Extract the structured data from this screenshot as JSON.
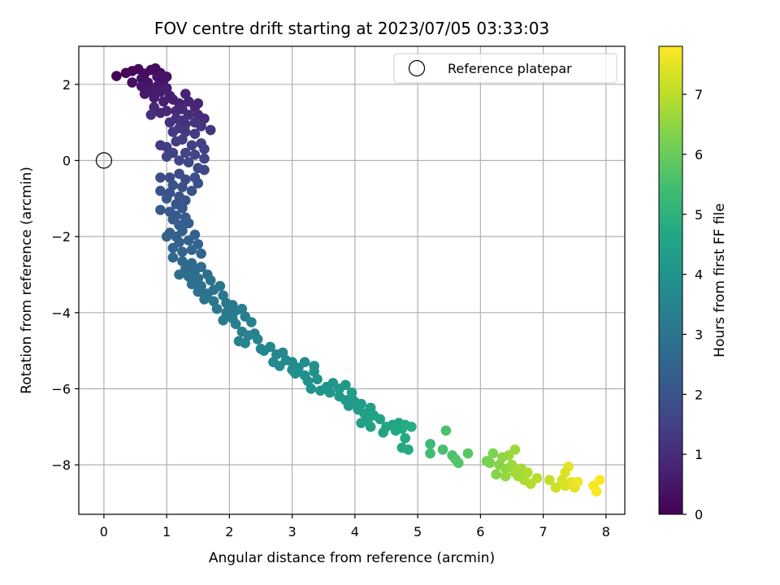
{
  "chart_data": {
    "type": "scatter",
    "title": "FOV centre drift starting at 2023/07/05 03:33:03",
    "xlabel": "Angular distance from reference (arcmin)",
    "ylabel": "Rotation from reference (arcmin)",
    "xlim": [
      -0.4,
      8.3
    ],
    "ylim": [
      -9.3,
      3.0
    ],
    "xticks": [
      0,
      1,
      2,
      3,
      4,
      5,
      6,
      7,
      8
    ],
    "yticks": [
      2,
      0,
      -2,
      -4,
      -6,
      -8
    ],
    "grid": true,
    "legend": {
      "placement": "top-right",
      "entries": [
        "Reference platepar"
      ]
    },
    "reference_point": {
      "x": 0,
      "y": 0,
      "label": "Reference platepar"
    },
    "colorbar": {
      "label": "Hours from first FF file",
      "min": 0,
      "max": 7.8,
      "ticks": [
        0,
        1,
        2,
        3,
        4,
        5,
        6,
        7
      ],
      "colormap": "viridis"
    },
    "points": [
      [
        0.2,
        2.22,
        0.05
      ],
      [
        0.35,
        2.3,
        0.1
      ],
      [
        0.45,
        2.35,
        0.15
      ],
      [
        0.55,
        2.4,
        0.2
      ],
      [
        0.65,
        2.28,
        0.22
      ],
      [
        0.75,
        2.38,
        0.25
      ],
      [
        0.82,
        2.42,
        0.28
      ],
      [
        0.9,
        2.3,
        0.3
      ],
      [
        0.45,
        2.05,
        0.32
      ],
      [
        0.6,
        2.15,
        0.35
      ],
      [
        0.7,
        2.05,
        0.38
      ],
      [
        0.85,
        2.2,
        0.4
      ],
      [
        0.95,
        2.1,
        0.42
      ],
      [
        1.0,
        2.2,
        0.45
      ],
      [
        0.6,
        1.95,
        0.48
      ],
      [
        0.75,
        1.85,
        0.5
      ],
      [
        0.85,
        1.95,
        0.52
      ],
      [
        0.65,
        1.75,
        0.55
      ],
      [
        0.8,
        1.65,
        0.58
      ],
      [
        0.9,
        1.8,
        0.6
      ],
      [
        1.0,
        1.9,
        0.62
      ],
      [
        1.05,
        1.7,
        0.65
      ],
      [
        0.95,
        1.55,
        0.68
      ],
      [
        1.1,
        1.6,
        0.7
      ],
      [
        1.2,
        1.5,
        0.72
      ],
      [
        1.3,
        1.75,
        0.75
      ],
      [
        1.35,
        1.55,
        0.78
      ],
      [
        1.45,
        1.4,
        0.8
      ],
      [
        1.5,
        1.5,
        0.82
      ],
      [
        0.8,
        1.4,
        0.85
      ],
      [
        0.9,
        1.25,
        0.88
      ],
      [
        1.0,
        1.3,
        0.9
      ],
      [
        1.15,
        1.3,
        0.92
      ],
      [
        1.25,
        1.35,
        0.95
      ],
      [
        1.35,
        1.2,
        0.98
      ],
      [
        1.5,
        1.2,
        1.0
      ],
      [
        1.6,
        1.1,
        1.02
      ],
      [
        0.75,
        1.2,
        1.05
      ],
      [
        1.05,
        1.0,
        1.08
      ],
      [
        1.15,
        1.1,
        1.1
      ],
      [
        1.25,
        1.05,
        1.12
      ],
      [
        1.3,
        0.95,
        1.15
      ],
      [
        1.45,
        1.0,
        1.18
      ],
      [
        1.55,
        0.9,
        1.2
      ],
      [
        1.7,
        0.8,
        1.22
      ],
      [
        1.2,
        0.85,
        1.25
      ],
      [
        1.1,
        0.75,
        1.28
      ],
      [
        1.3,
        0.75,
        1.3
      ],
      [
        1.45,
        0.7,
        1.32
      ],
      [
        0.9,
        0.4,
        1.35
      ],
      [
        1.0,
        0.35,
        1.38
      ],
      [
        1.15,
        0.5,
        1.4
      ],
      [
        1.25,
        0.55,
        1.42
      ],
      [
        1.4,
        0.4,
        1.45
      ],
      [
        1.55,
        0.45,
        1.48
      ],
      [
        1.6,
        0.3,
        1.5
      ],
      [
        1.1,
        0.2,
        1.52
      ],
      [
        1.3,
        0.2,
        1.55
      ],
      [
        1.45,
        0.15,
        1.58
      ],
      [
        1.6,
        0.05,
        1.6
      ],
      [
        1.0,
        0.1,
        1.62
      ],
      [
        1.2,
        0.0,
        1.65
      ],
      [
        1.35,
        -0.05,
        1.68
      ],
      [
        1.5,
        -0.2,
        1.7
      ],
      [
        1.6,
        -0.25,
        1.72
      ],
      [
        0.9,
        -0.45,
        1.75
      ],
      [
        1.05,
        -0.45,
        1.78
      ],
      [
        1.2,
        -0.35,
        1.8
      ],
      [
        1.3,
        -0.5,
        1.82
      ],
      [
        1.45,
        -0.45,
        1.85
      ],
      [
        1.5,
        -0.6,
        1.88
      ],
      [
        1.1,
        -0.65,
        1.9
      ],
      [
        1.25,
        -0.7,
        1.92
      ],
      [
        1.4,
        -0.8,
        1.95
      ],
      [
        0.9,
        -0.8,
        1.98
      ],
      [
        1.05,
        -0.85,
        2.0
      ],
      [
        1.2,
        -0.95,
        2.02
      ],
      [
        1.3,
        -1.05,
        2.05
      ],
      [
        1.15,
        -1.15,
        2.08
      ],
      [
        1.0,
        -1.0,
        2.1
      ],
      [
        1.25,
        -1.25,
        2.12
      ],
      [
        0.9,
        -1.3,
        2.15
      ],
      [
        1.05,
        -1.35,
        2.18
      ],
      [
        1.15,
        -1.45,
        2.2
      ],
      [
        1.3,
        -1.5,
        2.22
      ],
      [
        1.1,
        -1.55,
        2.25
      ],
      [
        1.2,
        -1.7,
        2.28
      ],
      [
        1.35,
        -1.65,
        2.3
      ],
      [
        1.05,
        -1.9,
        2.32
      ],
      [
        1.15,
        -2.0,
        2.35
      ],
      [
        1.25,
        -1.85,
        2.38
      ],
      [
        1.45,
        -1.95,
        2.4
      ],
      [
        1.0,
        -2.0,
        2.42
      ],
      [
        1.2,
        -2.15,
        2.45
      ],
      [
        1.35,
        -2.1,
        2.48
      ],
      [
        1.5,
        -2.2,
        2.5
      ],
      [
        1.1,
        -2.3,
        2.52
      ],
      [
        1.25,
        -2.4,
        2.55
      ],
      [
        1.4,
        -2.35,
        2.58
      ],
      [
        1.55,
        -2.45,
        2.6
      ],
      [
        1.1,
        -2.55,
        2.62
      ],
      [
        1.25,
        -2.65,
        2.65
      ],
      [
        1.4,
        -2.7,
        2.68
      ],
      [
        1.3,
        -2.85,
        2.7
      ],
      [
        1.45,
        -2.9,
        2.72
      ],
      [
        1.55,
        -2.8,
        2.75
      ],
      [
        1.2,
        -3.0,
        2.78
      ],
      [
        1.35,
        -3.05,
        2.8
      ],
      [
        1.5,
        -3.1,
        2.82
      ],
      [
        1.65,
        -3.0,
        2.85
      ],
      [
        1.4,
        -3.25,
        2.88
      ],
      [
        1.55,
        -3.3,
        2.9
      ],
      [
        1.7,
        -3.15,
        2.92
      ],
      [
        1.5,
        -3.45,
        2.95
      ],
      [
        1.65,
        -3.5,
        2.98
      ],
      [
        1.75,
        -3.4,
        3.0
      ],
      [
        1.85,
        -3.3,
        3.02
      ],
      [
        1.6,
        -3.65,
        3.05
      ],
      [
        1.75,
        -3.7,
        3.08
      ],
      [
        1.9,
        -3.55,
        3.1
      ],
      [
        1.95,
        -3.75,
        3.12
      ],
      [
        1.8,
        -3.9,
        3.15
      ],
      [
        2.05,
        -3.8,
        3.18
      ],
      [
        1.95,
        -4.0,
        3.2
      ],
      [
        2.1,
        -3.95,
        3.22
      ],
      [
        1.9,
        -4.2,
        3.25
      ],
      [
        2.05,
        -4.15,
        3.28
      ],
      [
        2.2,
        -3.9,
        3.3
      ],
      [
        2.25,
        -4.1,
        3.32
      ],
      [
        2.1,
        -4.3,
        3.35
      ],
      [
        2.2,
        -4.5,
        3.38
      ],
      [
        2.35,
        -4.25,
        3.4
      ],
      [
        2.3,
        -4.6,
        3.42
      ],
      [
        2.15,
        -4.75,
        3.45
      ],
      [
        2.4,
        -4.55,
        3.48
      ],
      [
        2.25,
        -4.8,
        3.5
      ],
      [
        2.45,
        -4.7,
        3.52
      ],
      [
        2.5,
        -4.95,
        3.55
      ],
      [
        2.65,
        -4.9,
        3.58
      ],
      [
        2.55,
        -5.0,
        3.6
      ],
      [
        2.75,
        -5.1,
        3.62
      ],
      [
        2.85,
        -5.05,
        3.65
      ],
      [
        2.7,
        -5.3,
        3.68
      ],
      [
        2.9,
        -5.25,
        3.7
      ],
      [
        3.0,
        -5.3,
        3.72
      ],
      [
        2.8,
        -5.4,
        3.75
      ],
      [
        3.0,
        -5.5,
        3.78
      ],
      [
        3.1,
        -5.45,
        3.8
      ],
      [
        3.2,
        -5.3,
        3.82
      ],
      [
        3.05,
        -5.6,
        3.85
      ],
      [
        3.2,
        -5.65,
        3.88
      ],
      [
        3.35,
        -5.55,
        3.9
      ],
      [
        3.25,
        -5.8,
        3.92
      ],
      [
        3.4,
        -5.75,
        3.95
      ],
      [
        3.35,
        -5.4,
        3.98
      ],
      [
        3.3,
        -6.0,
        4.0
      ],
      [
        3.45,
        -6.05,
        4.02
      ],
      [
        3.55,
        -5.95,
        4.05
      ],
      [
        3.6,
        -6.1,
        4.08
      ],
      [
        3.65,
        -5.85,
        4.1
      ],
      [
        3.75,
        -6.0,
        4.12
      ],
      [
        3.85,
        -5.9,
        4.15
      ],
      [
        3.75,
        -6.2,
        4.18
      ],
      [
        3.85,
        -6.3,
        4.2
      ],
      [
        3.95,
        -6.25,
        4.22
      ],
      [
        3.9,
        -6.45,
        4.25
      ],
      [
        4.0,
        -6.35,
        4.28
      ],
      [
        4.05,
        -6.55,
        4.3
      ],
      [
        3.95,
        -6.1,
        4.32
      ],
      [
        4.1,
        -6.4,
        4.35
      ],
      [
        4.15,
        -6.65,
        4.38
      ],
      [
        4.25,
        -6.5,
        4.4
      ],
      [
        4.1,
        -6.9,
        4.42
      ],
      [
        4.2,
        -6.85,
        4.45
      ],
      [
        4.3,
        -6.7,
        4.48
      ],
      [
        4.25,
        -7.0,
        4.5
      ],
      [
        4.4,
        -6.8,
        4.52
      ],
      [
        4.45,
        -7.15,
        4.55
      ],
      [
        4.5,
        -7.0,
        4.58
      ],
      [
        4.6,
        -6.95,
        4.6
      ],
      [
        4.7,
        -6.9,
        4.62
      ],
      [
        4.65,
        -7.1,
        4.65
      ],
      [
        4.75,
        -7.05,
        4.68
      ],
      [
        4.8,
        -7.3,
        4.7
      ],
      [
        4.75,
        -7.55,
        4.72
      ],
      [
        4.85,
        -7.6,
        4.75
      ],
      [
        4.9,
        -7.0,
        4.78
      ],
      [
        4.8,
        -6.95,
        4.8
      ],
      [
        5.2,
        -7.45,
        5.3
      ],
      [
        5.2,
        -7.7,
        5.4
      ],
      [
        5.4,
        -7.6,
        5.5
      ],
      [
        5.45,
        -7.1,
        5.55
      ],
      [
        5.55,
        -7.75,
        5.6
      ],
      [
        5.6,
        -7.85,
        5.65
      ],
      [
        5.65,
        -7.95,
        5.7
      ],
      [
        5.8,
        -7.7,
        5.8
      ],
      [
        6.1,
        -7.9,
        6.2
      ],
      [
        6.15,
        -7.95,
        6.25
      ],
      [
        6.2,
        -7.7,
        6.3
      ],
      [
        6.25,
        -8.25,
        6.35
      ],
      [
        6.3,
        -8.0,
        6.4
      ],
      [
        6.35,
        -7.8,
        6.45
      ],
      [
        6.4,
        -8.1,
        6.5
      ],
      [
        6.4,
        -8.3,
        6.55
      ],
      [
        6.45,
        -7.75,
        6.6
      ],
      [
        6.5,
        -8.0,
        6.62
      ],
      [
        6.55,
        -7.6,
        6.65
      ],
      [
        6.55,
        -8.2,
        6.68
      ],
      [
        6.6,
        -8.3,
        6.7
      ],
      [
        6.65,
        -8.1,
        6.75
      ],
      [
        6.7,
        -8.4,
        6.8
      ],
      [
        6.75,
        -8.2,
        6.85
      ],
      [
        6.8,
        -8.5,
        6.9
      ],
      [
        6.9,
        -8.35,
        6.95
      ],
      [
        7.1,
        -8.4,
        7.1
      ],
      [
        7.2,
        -8.6,
        7.2
      ],
      [
        7.3,
        -8.4,
        7.3
      ],
      [
        7.35,
        -8.55,
        7.35
      ],
      [
        7.35,
        -8.2,
        7.4
      ],
      [
        7.4,
        -8.05,
        7.45
      ],
      [
        7.45,
        -8.45,
        7.5
      ],
      [
        7.5,
        -8.6,
        7.55
      ],
      [
        7.55,
        -8.45,
        7.6
      ],
      [
        7.8,
        -8.55,
        7.7
      ],
      [
        7.85,
        -8.7,
        7.75
      ],
      [
        7.9,
        -8.4,
        7.8
      ]
    ]
  }
}
